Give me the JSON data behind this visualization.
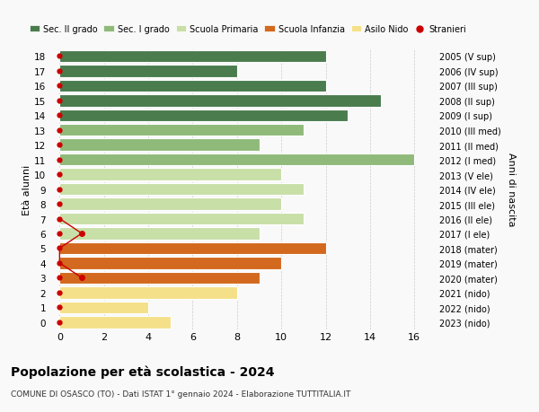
{
  "ages": [
    18,
    17,
    16,
    15,
    14,
    13,
    12,
    11,
    10,
    9,
    8,
    7,
    6,
    5,
    4,
    3,
    2,
    1,
    0
  ],
  "right_labels": [
    "2005 (V sup)",
    "2006 (IV sup)",
    "2007 (III sup)",
    "2008 (II sup)",
    "2009 (I sup)",
    "2010 (III med)",
    "2011 (II med)",
    "2012 (I med)",
    "2013 (V ele)",
    "2014 (IV ele)",
    "2015 (III ele)",
    "2016 (II ele)",
    "2017 (I ele)",
    "2018 (mater)",
    "2019 (mater)",
    "2020 (mater)",
    "2021 (nido)",
    "2022 (nido)",
    "2023 (nido)"
  ],
  "bar_values": [
    12,
    8,
    12,
    14.5,
    13,
    11,
    9,
    16,
    10,
    11,
    10,
    11,
    9,
    12,
    10,
    9,
    8,
    4,
    5
  ],
  "bar_colors": [
    "#4a7c4e",
    "#4a7c4e",
    "#4a7c4e",
    "#4a7c4e",
    "#4a7c4e",
    "#8fba7a",
    "#8fba7a",
    "#8fba7a",
    "#c8dfa8",
    "#c8dfa8",
    "#c8dfa8",
    "#c8dfa8",
    "#c8dfa8",
    "#d2691e",
    "#d2691e",
    "#d2691e",
    "#f5e08a",
    "#f5e08a",
    "#f5e08a"
  ],
  "legend_labels": [
    "Sec. II grado",
    "Sec. I grado",
    "Scuola Primaria",
    "Scuola Infanzia",
    "Asilo Nido",
    "Stranieri"
  ],
  "legend_colors": [
    "#4a7c4e",
    "#8fba7a",
    "#c8dfa8",
    "#d2691e",
    "#f5e08a",
    "#cc0000"
  ],
  "title": "Popolazione per età scolastica - 2024",
  "subtitle": "COMUNE DI OSASCO (TO) - Dati ISTAT 1° gennaio 2024 - Elaborazione TUTTITALIA.IT",
  "ylabel": "Età alunni",
  "ylabel2": "Anni di nascita",
  "xlabel_ticks": [
    0,
    2,
    4,
    6,
    8,
    10,
    12,
    14,
    16
  ],
  "xlim_max": 17,
  "bg_color": "#f9f9f9",
  "bar_edge_color": "white",
  "grid_color": "#cccccc",
  "stranieri_color": "#cc0000",
  "stranieri_line_ages": [
    7,
    6,
    5,
    4,
    3
  ],
  "stranieri_line_vals": [
    0,
    1,
    0,
    0,
    1
  ]
}
